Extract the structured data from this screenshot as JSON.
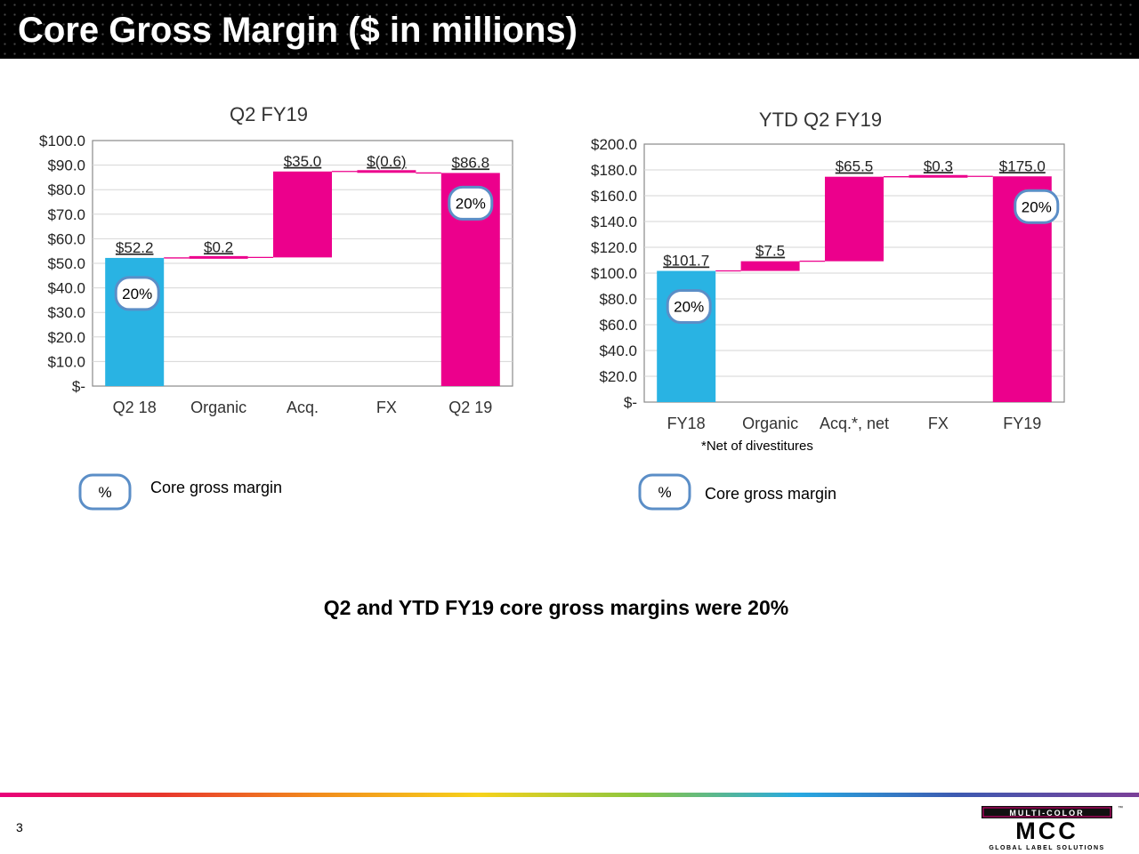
{
  "slide": {
    "title": "Core Gross Margin ($ in millions)",
    "page_number": "3",
    "summary": "Q2 and YTD FY19 core gross margins were 20%",
    "footnote": "*Net of divestitures",
    "colors": {
      "base_bar": "#29b3e3",
      "delta_bar": "#ec008c",
      "connector": "#ec008c",
      "badge_border": "#5b8ec7"
    }
  },
  "legend": [
    {
      "badge": "%",
      "text": "Core gross margin"
    },
    {
      "badge": "%",
      "text": "Core gross margin"
    }
  ],
  "logo": {
    "brand": "MULTI-COLOR",
    "tagline": "GLOBAL LABEL SOLUTIONS",
    "mark": "MCC",
    "tm": "™"
  },
  "chart_data": [
    {
      "type": "bar",
      "subtype": "waterfall",
      "title": "Q2 FY19",
      "categories": [
        "Q2 18",
        "Organic",
        "Acq.",
        "FX",
        "Q2 19"
      ],
      "values": [
        52.2,
        0.2,
        35.0,
        -0.6,
        86.8
      ],
      "kinds": [
        "total",
        "delta",
        "delta",
        "delta",
        "total"
      ],
      "value_labels": [
        "$52.2",
        "$0.2",
        "$35.0",
        "$(0.6)",
        "$86.8"
      ],
      "y_ticks": [
        "$-",
        "$10.0",
        "$20.0",
        "$30.0",
        "$40.0",
        "$50.0",
        "$60.0",
        "$70.0",
        "$80.0",
        "$90.0",
        "$100.0"
      ],
      "ylim": [
        0,
        100
      ],
      "grid": true,
      "margin_badges": [
        {
          "category": "Q2 18",
          "text": "20%"
        },
        {
          "category": "Q2 19",
          "text": "20%"
        }
      ]
    },
    {
      "type": "bar",
      "subtype": "waterfall",
      "title": "YTD Q2 FY19",
      "categories": [
        "FY18",
        "Organic",
        "Acq.*, net",
        "FX",
        "FY19"
      ],
      "values": [
        101.7,
        7.5,
        65.5,
        0.3,
        175.0
      ],
      "kinds": [
        "total",
        "delta",
        "delta",
        "delta",
        "total"
      ],
      "value_labels": [
        "$101.7",
        "$7.5",
        "$65.5",
        "$0.3",
        "$175.0"
      ],
      "y_ticks": [
        "$-",
        "$20.0",
        "$40.0",
        "$60.0",
        "$80.0",
        "$100.0",
        "$120.0",
        "$140.0",
        "$160.0",
        "$180.0",
        "$200.0"
      ],
      "ylim": [
        0,
        200
      ],
      "grid": true,
      "margin_badges": [
        {
          "category": "FY18",
          "text": "20%"
        },
        {
          "category": "FY19",
          "text": "20%"
        }
      ]
    }
  ]
}
